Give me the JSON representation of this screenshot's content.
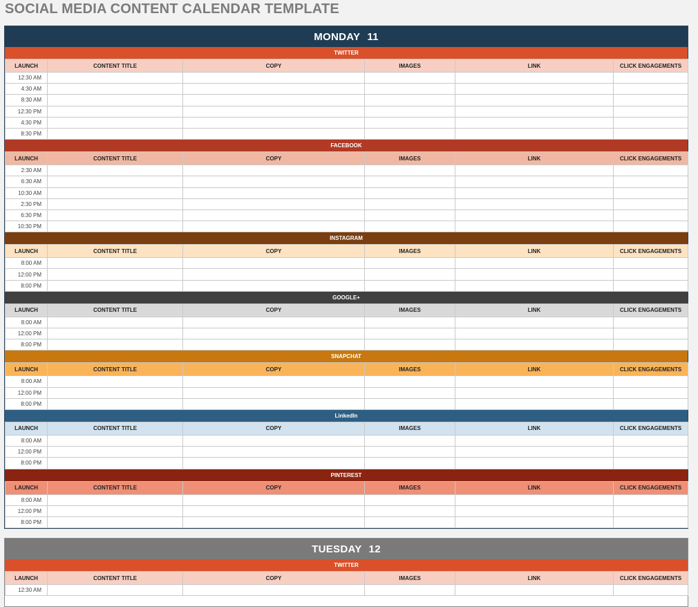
{
  "page": {
    "title": "SOCIAL MEDIA CONTENT CALENDAR TEMPLATE"
  },
  "columns": [
    "LAUNCH",
    "CONTENT TITLE",
    "COPY",
    "IMAGES",
    "LINK",
    "CLICK ENGAGEMENTS"
  ],
  "colors": {
    "monday_header": "#1f3c54",
    "tuesday_header": "#7a7a7a",
    "twitter": "#d9502a",
    "twitter_sub": "#f7cfc2",
    "facebook": "#b03a24",
    "facebook_sub": "#f0b8a3",
    "instagram": "#7a3e10",
    "instagram_sub": "#fde3c2",
    "google": "#404040",
    "google_sub": "#d9d9d9",
    "snapchat": "#c8780e",
    "snapchat_sub": "#f9b45a",
    "linkedin": "#2e5f82",
    "linkedin_sub": "#d2e3ef",
    "pinterest": "#8a2410",
    "pinterest_sub": "#ee8f76"
  },
  "days": [
    {
      "name": "MONDAY",
      "date": "11",
      "sections": [
        {
          "name": "TWITTER",
          "times": [
            "12:30 AM",
            "4:30 AM",
            "8:30 AM",
            "12:30 PM",
            "4:30 PM",
            "8:30 PM"
          ]
        },
        {
          "name": "FACEBOOK",
          "times": [
            "2:30 AM",
            "6:30 AM",
            "10:30 AM",
            "2:30 PM",
            "6:30 PM",
            "10:30 PM"
          ]
        },
        {
          "name": "INSTAGRAM",
          "times": [
            "8:00 AM",
            "12:00 PM",
            "8:00 PM"
          ]
        },
        {
          "name": "GOOGLE+",
          "times": [
            "8:00 AM",
            "12:00 PM",
            "8:00 PM"
          ]
        },
        {
          "name": "SNAPCHAT",
          "times": [
            "8:00 AM",
            "12:00 PM",
            "8:00 PM"
          ]
        },
        {
          "name": "LinkedIn",
          "times": [
            "8:00 AM",
            "12:00 PM",
            "8:00 PM"
          ]
        },
        {
          "name": "PINTEREST",
          "times": [
            "8:00 AM",
            "12:00 PM",
            "8:00 PM"
          ]
        }
      ]
    },
    {
      "name": "TUESDAY",
      "date": "12",
      "sections": [
        {
          "name": "TWITTER",
          "times": [
            "12:30 AM"
          ]
        }
      ]
    }
  ]
}
